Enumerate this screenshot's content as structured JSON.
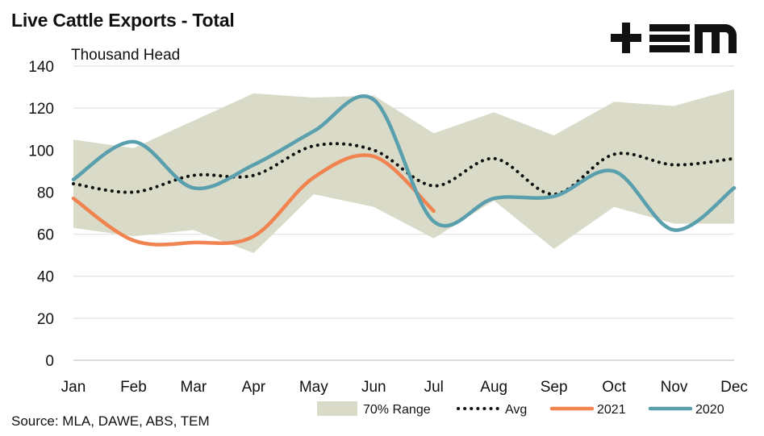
{
  "logo_text": "+EM",
  "chart_data": {
    "type": "line",
    "title": "Live Cattle Exports - Total",
    "ylabel": "Thousand Head",
    "xlabel": "",
    "source": "Source: MLA, DAWE, ABS, TEM",
    "categories": [
      "Jan",
      "Feb",
      "Mar",
      "Apr",
      "May",
      "Jun",
      "Jul",
      "Aug",
      "Sep",
      "Oct",
      "Nov",
      "Dec"
    ],
    "ylim": [
      0,
      140
    ],
    "yticks": [
      0,
      20,
      40,
      60,
      80,
      100,
      120,
      140
    ],
    "grid": true,
    "legend_position": "bottom-right",
    "range": {
      "name": "70% Range",
      "color": "#d9dbc8",
      "upper": [
        105,
        101,
        114,
        127,
        125,
        126,
        108,
        118,
        107,
        123,
        121,
        129
      ],
      "lower": [
        63,
        59,
        62,
        51,
        79,
        73,
        58,
        76,
        53,
        73,
        65,
        65
      ]
    },
    "series": [
      {
        "name": "Avg",
        "style": "dotted",
        "color": "#111111",
        "values": [
          84,
          80,
          88,
          88,
          102,
          100,
          83,
          96,
          79,
          98,
          93,
          96
        ]
      },
      {
        "name": "2021",
        "style": "solid",
        "color": "#f0834f",
        "values": [
          77,
          57,
          56,
          59,
          87,
          97,
          71,
          null,
          null,
          null,
          null,
          null
        ]
      },
      {
        "name": "2020",
        "style": "solid",
        "color": "#5a9fad",
        "values": [
          86,
          104,
          82,
          93,
          109,
          124,
          66,
          77,
          78,
          90,
          62,
          82
        ]
      }
    ]
  }
}
